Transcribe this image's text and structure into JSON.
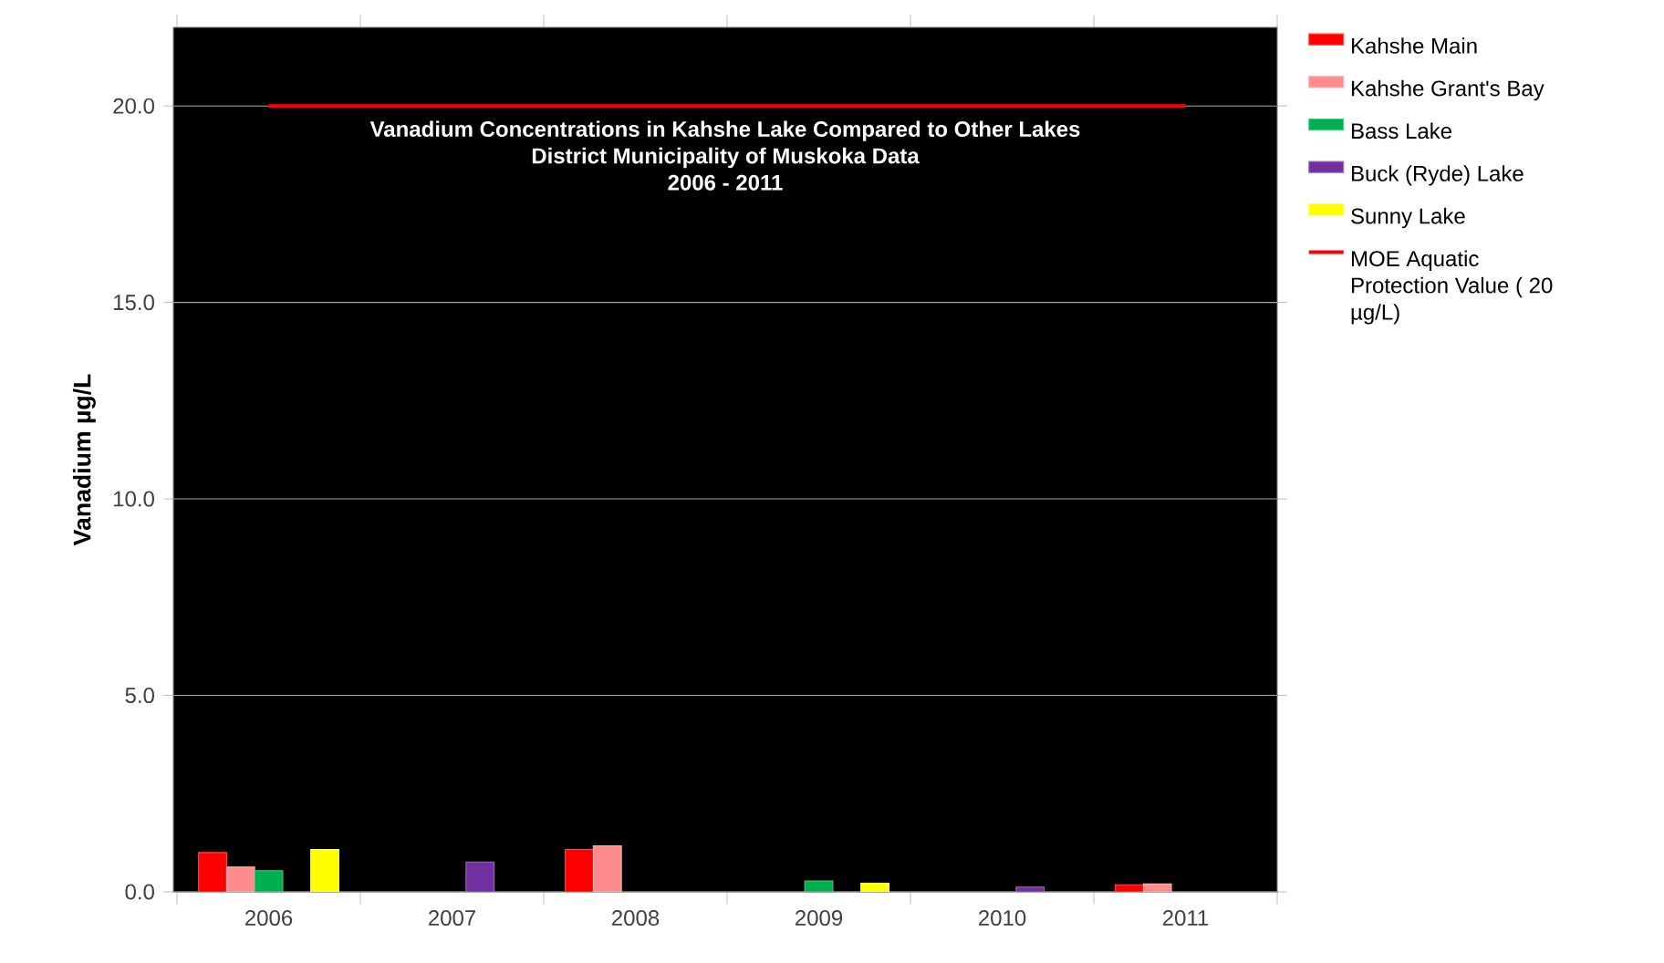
{
  "chart_data": {
    "type": "bar",
    "title": "Vanadium Concentrations in Kahshe Lake Compared to Other Lakes",
    "subtitle": "District Municipality of Muskoka Data",
    "annotations": [
      "2006 - 2011"
    ],
    "ylabel": "Vanadium  µg/L",
    "categories": [
      "2006",
      "2007",
      "2008",
      "2009",
      "2010",
      "2011"
    ],
    "series": [
      {
        "name": "Kahshe Main",
        "color": "#ff0000",
        "values": [
          1.0,
          null,
          1.08,
          null,
          null,
          0.18
        ]
      },
      {
        "name": "Kahshe Grant's Bay",
        "color": "#ff8c8c",
        "values": [
          0.63,
          null,
          1.17,
          null,
          null,
          0.2
        ]
      },
      {
        "name": "Bass Lake",
        "color": "#00b050",
        "values": [
          0.54,
          null,
          null,
          0.28,
          null,
          null
        ]
      },
      {
        "name": "Buck (Ryde) Lake",
        "color": "#7030a0",
        "values": [
          null,
          0.76,
          null,
          null,
          0.12,
          null
        ]
      },
      {
        "name": "Sunny Lake",
        "color": "#ffff00",
        "values": [
          1.08,
          null,
          null,
          0.22,
          null,
          null
        ]
      },
      {
        "name": "MOE Aquatic Protection Value ( 20 µg/L)",
        "type": "line",
        "color": "#ff0000",
        "values": [
          20,
          20,
          20,
          20,
          20,
          20
        ]
      }
    ],
    "ylim": [
      0,
      22
    ],
    "yticks": [
      {
        "value": 0,
        "label": "0.0"
      },
      {
        "value": 5,
        "label": "5.0"
      },
      {
        "value": 10,
        "label": "10.0"
      },
      {
        "value": 15,
        "label": "15.0"
      },
      {
        "value": 20,
        "label": "20.0"
      }
    ],
    "grid": "y",
    "legend": "right"
  }
}
